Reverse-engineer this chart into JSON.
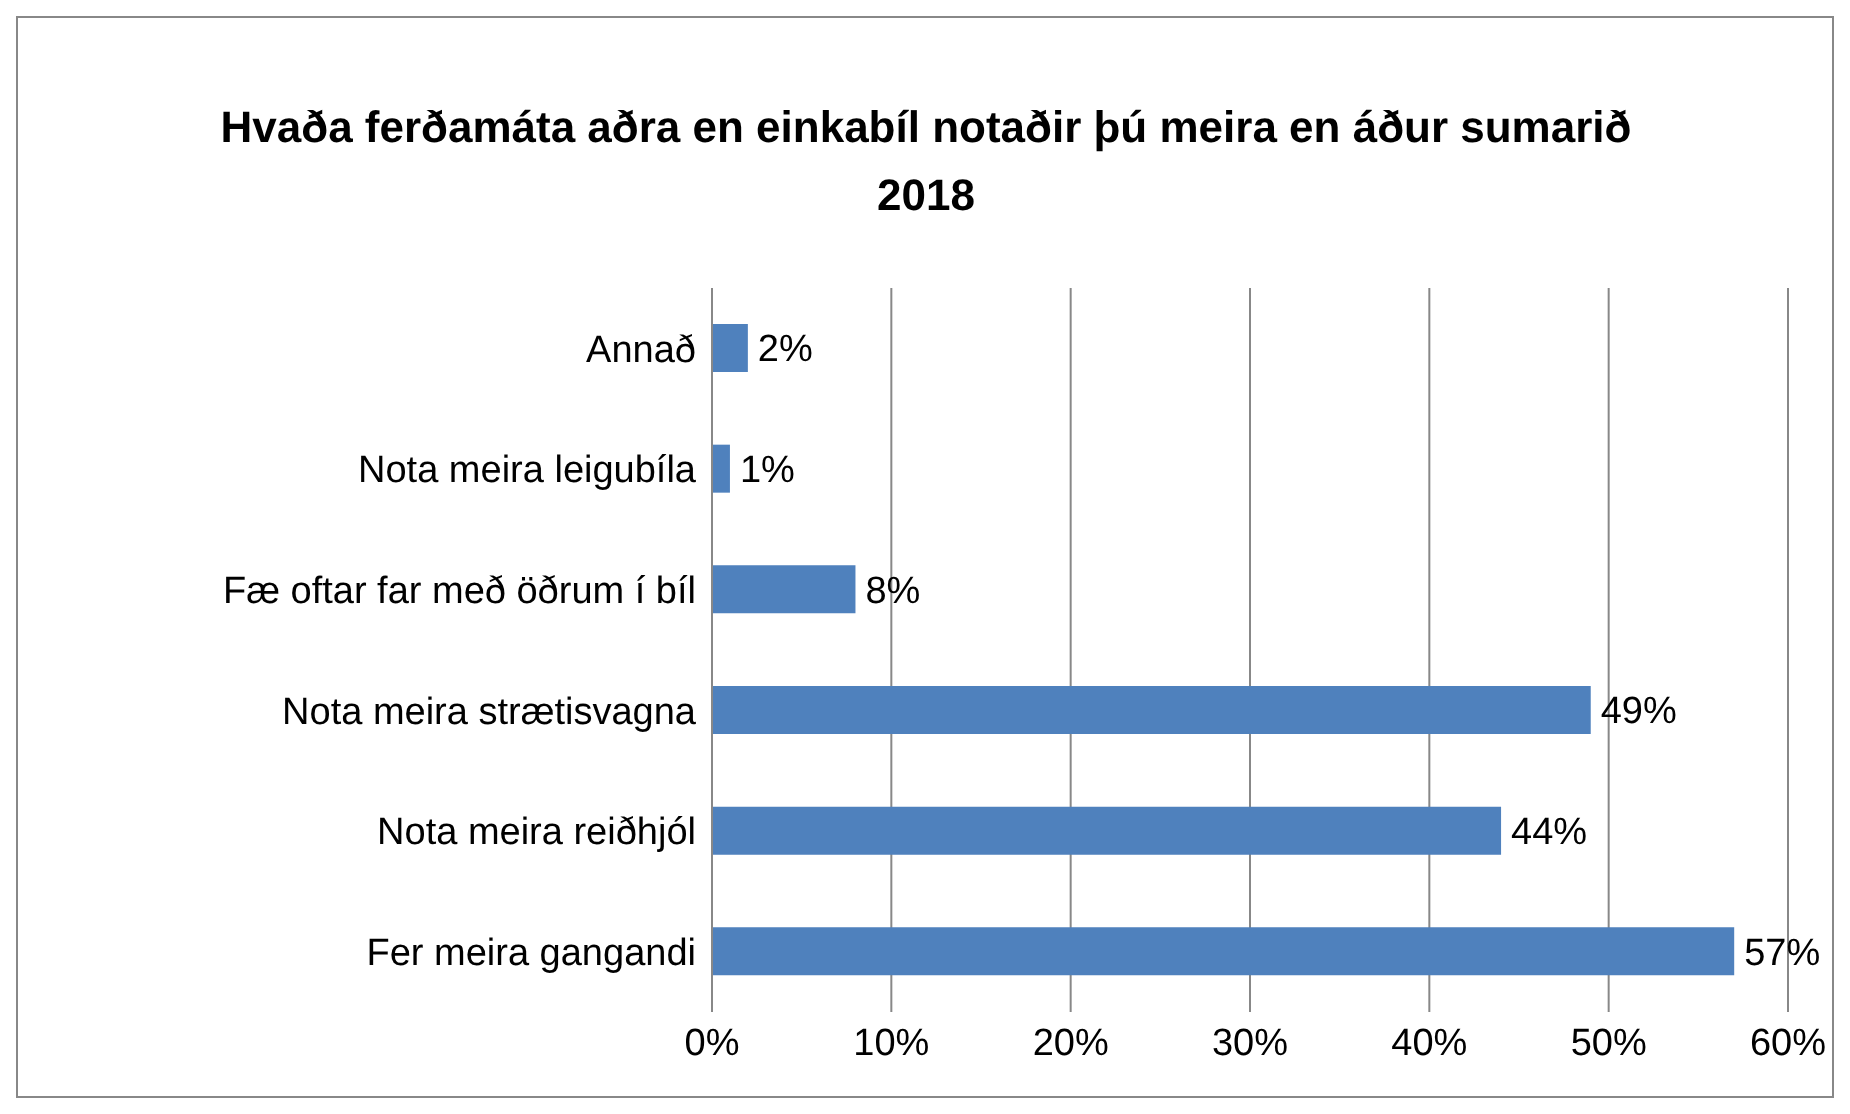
{
  "chart_data": {
    "type": "bar",
    "orientation": "horizontal",
    "title": "Hvaða ferðamáta aðra en einkabíl notaðir þú meira en áður sumarið 2018",
    "categories": [
      "Annað",
      "Nota meira leigubíla",
      "Fæ oftar far með öðrum í bíl",
      "Nota meira strætisvagna",
      "Nota meira reiðhjól",
      "Fer meira gangandi"
    ],
    "values": [
      2,
      1,
      8,
      49,
      44,
      57
    ],
    "value_labels": [
      "2%",
      "1%",
      "8%",
      "49%",
      "44%",
      "57%"
    ],
    "color": "#4f81bd",
    "xlim": [
      0,
      60
    ],
    "xticks": [
      {
        "value": 0,
        "label": "0%"
      },
      {
        "value": 10,
        "label": "10%"
      },
      {
        "value": 20,
        "label": "20%"
      },
      {
        "value": 30,
        "label": "30%"
      },
      {
        "value": 40,
        "label": "40%"
      },
      {
        "value": 50,
        "label": "50%"
      },
      {
        "value": 60,
        "label": "60%"
      }
    ],
    "grid": "x"
  }
}
